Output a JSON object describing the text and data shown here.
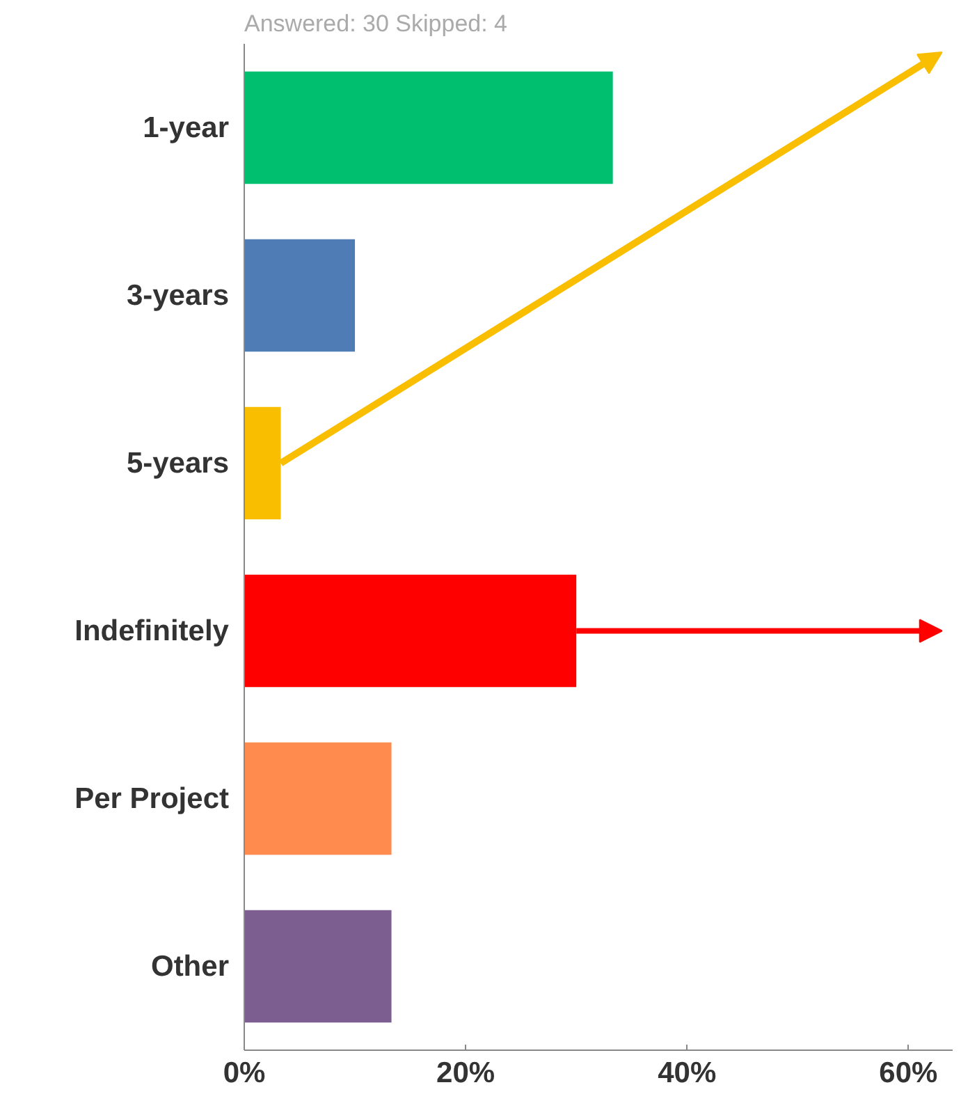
{
  "chart_data": {
    "type": "bar",
    "orientation": "horizontal",
    "subtitle": "Answered: 30   Skipped: 4",
    "categories": [
      "1-year",
      "3-years",
      "5-years",
      "Indefinitely",
      "Per Project",
      "Other"
    ],
    "values": [
      33.3,
      10,
      3.3,
      30,
      13.3,
      13.3
    ],
    "colors": [
      "#00bf6f",
      "#507cb6",
      "#f9be00",
      "#ff0000",
      "#ff8b4f",
      "#7d5e90"
    ],
    "xlim": [
      0,
      64
    ],
    "xticks": [
      {
        "value": 0,
        "label": "0%"
      },
      {
        "value": 20,
        "label": "20%"
      },
      {
        "value": 40,
        "label": "40%"
      },
      {
        "value": 60,
        "label": "60%"
      }
    ],
    "grid": false
  }
}
